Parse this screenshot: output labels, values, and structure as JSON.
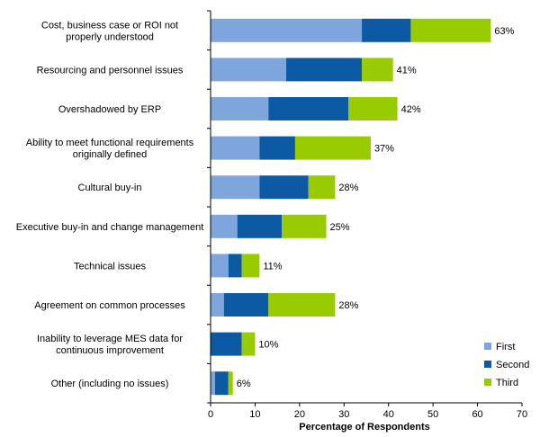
{
  "chart_data": {
    "type": "bar",
    "orientation": "horizontal",
    "stacked": true,
    "categories": [
      "Cost, business case or ROI not properly understood",
      "Resourcing and personnel issues",
      "Overshadowed by ERP",
      "Ability to meet functional requirements originally defined",
      "Cultural buy-in",
      "Executive buy-in and change management",
      "Technical issues",
      "Agreement on common processes",
      "Inability to leverage MES data for continuous improvement",
      "Other (including no issues)"
    ],
    "category_lines": [
      [
        "Cost, business case or ROI not",
        "properly understood"
      ],
      [
        "Resourcing and personnel issues"
      ],
      [
        "Overshadowed by ERP"
      ],
      [
        "Ability to meet functional requirements",
        "originally defined"
      ],
      [
        "Cultural buy-in"
      ],
      [
        "Executive buy-in and change management"
      ],
      [
        "Technical issues"
      ],
      [
        "Agreement on common processes"
      ],
      [
        "Inability to leverage MES data for",
        "continuous improvement"
      ],
      [
        "Other (including no issues)"
      ]
    ],
    "series": [
      {
        "name": "First",
        "color": "#7ea6dc",
        "values": [
          34,
          17,
          13,
          11,
          11,
          6,
          4,
          3,
          0,
          1
        ]
      },
      {
        "name": "Second",
        "color": "#0b5aa3",
        "values": [
          11,
          17,
          18,
          8,
          11,
          10,
          3,
          10,
          7,
          3
        ]
      },
      {
        "name": "Third",
        "color": "#99cc00",
        "values": [
          18,
          7,
          11,
          17,
          6,
          10,
          4,
          15,
          3,
          1
        ]
      }
    ],
    "total_labels": [
      "63%",
      "41%",
      "42%",
      "37%",
      "28%",
      "25%",
      "11%",
      "28%",
      "10%",
      "6%"
    ],
    "xlabel": "Percentage of Respondents",
    "xlim": [
      0,
      70
    ],
    "xticks": [
      0,
      10,
      20,
      30,
      40,
      50,
      60,
      70
    ],
    "grid": false,
    "legend_position": "bottom-right"
  }
}
